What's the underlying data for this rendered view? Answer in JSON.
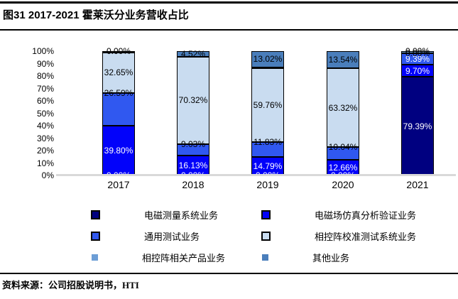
{
  "header": {
    "title": "图31 2017-2021 霍莱沃分业务营收占比"
  },
  "footer": {
    "source": "资料来源：公司招股说明书，HTI"
  },
  "chart_data": {
    "type": "bar",
    "subtype": "stacked-100-percent",
    "title": "图31 2017-2021 霍莱沃分业务营收占比",
    "categories": [
      "2017",
      "2018",
      "2019",
      "2020",
      "2021"
    ],
    "yticks": [
      "0%",
      "10%",
      "20%",
      "30%",
      "40%",
      "50%",
      "60%",
      "70%",
      "80%",
      "90%",
      "100%"
    ],
    "ylim": [
      0,
      100
    ],
    "grid": "off",
    "legend_position": "bottom",
    "axis_line_color": "#D9D9D9",
    "series": [
      {
        "name": "电磁测量系统业务",
        "color": "#000080",
        "values": [
          0.0,
          0.0,
          0.0,
          0.0,
          79.39
        ],
        "labels": [
          "0.00%",
          "0.00%",
          "0.00%",
          "0.00%",
          "79.39%"
        ],
        "show_labels": true,
        "label_color": "white",
        "placement": "center",
        "legend_border": true
      },
      {
        "name": "电磁场仿真分析验证业务",
        "color": "#0202FA",
        "values": [
          39.8,
          16.13,
          14.79,
          12.66,
          9.7
        ],
        "labels": [
          "39.80%",
          "16.13%",
          "14.79%",
          "12.66%",
          "9.70%"
        ],
        "show_labels": true,
        "label_color": "white",
        "placement": "center",
        "legend_border": true
      },
      {
        "name": "通用测试业务",
        "color": "#3058F0",
        "values": [
          26.59,
          9.03,
          11.83,
          10.04,
          9.39
        ],
        "labels": [
          "26.59%",
          "9.03%",
          "11.83%",
          "10.04%",
          "9.39%"
        ],
        "show_labels": true,
        "label_color": "black",
        "label_colors": [
          "black",
          "black",
          "black",
          "black",
          "white"
        ],
        "placement": "inside-end",
        "placements": [
          "inside-end",
          "inside-end",
          "inside-end",
          "inside-end",
          "center"
        ],
        "legend_border": true
      },
      {
        "name": "相控阵校准测试系统业务",
        "color": "#C9DCF0",
        "values": [
          32.65,
          70.32,
          59.76,
          63.32,
          0.0
        ],
        "labels": [
          "32.65%",
          "70.32%",
          "59.76%",
          "63.32%",
          "0.00%"
        ],
        "show_labels": true,
        "label_color": "black",
        "placement": "center",
        "legend_border": true
      },
      {
        "name": "相控阵相关产品业务",
        "color": "#6D9ED6",
        "values": [
          0.96,
          0.0,
          0.6,
          0.44,
          1.52
        ],
        "labels": [
          "",
          "",
          "",
          "",
          ""
        ],
        "show_labels": false,
        "label_color": "black",
        "placement": "center",
        "legend_border": false
      },
      {
        "name": "其他业务",
        "color": "#4A7EBB",
        "values": [
          0.0,
          4.52,
          13.02,
          13.54,
          0.0
        ],
        "labels": [
          "0.00%",
          "4.52%",
          "13.02%",
          "13.54%",
          "0.00%"
        ],
        "show_labels": true,
        "label_color": "black",
        "placement": "center",
        "legend_border": false
      }
    ]
  }
}
